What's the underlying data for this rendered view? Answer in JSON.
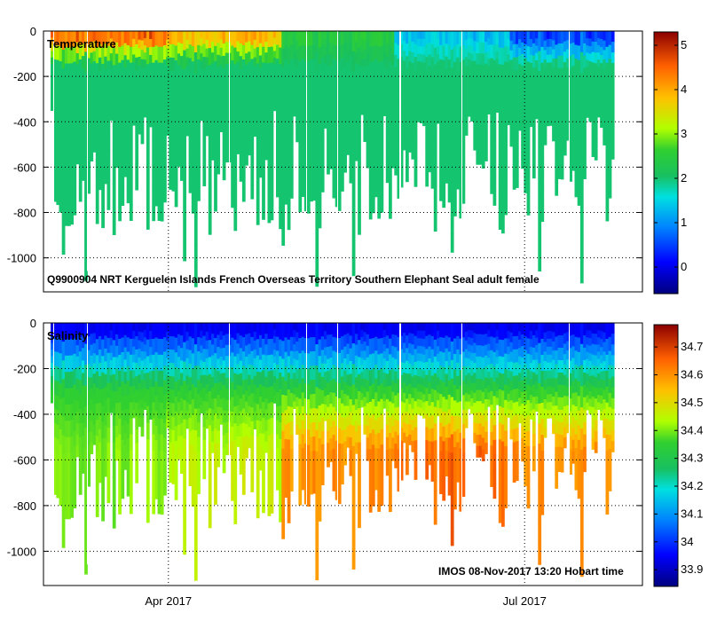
{
  "chart_data": [
    {
      "type": "heatmap",
      "panel_label": "Temperature",
      "title": "Q9900904 NRT Kerguelen Islands French Overseas Territory Southern Elephant Seal adult female",
      "xlabel": "",
      "ylabel": "",
      "x_ticks": [
        "Apr 2017",
        "Jul 2017"
      ],
      "y_ticks": [
        0,
        -200,
        -400,
        -600,
        -800,
        -1000
      ],
      "ylim": [
        -1150,
        0
      ],
      "colorbar": {
        "min": -0.6,
        "max": 5.3,
        "ticks": [
          0,
          1,
          2,
          3,
          4,
          5
        ]
      },
      "profiles": {
        "start": "2017-03-01",
        "end": "2017-07-31",
        "surface_value_by_month": {
          "Mar": 5.0,
          "Apr": 4.3,
          "May": 2.5,
          "Jun": 1.2,
          "Jul": 0.2
        },
        "deep_value": 2.0
      }
    },
    {
      "type": "heatmap",
      "panel_label": "Salinity",
      "title": "",
      "xlabel": "",
      "ylabel": "",
      "x_ticks": [
        "Apr 2017",
        "Jul 2017"
      ],
      "y_ticks": [
        0,
        -200,
        -400,
        -600,
        -800,
        -1000
      ],
      "ylim": [
        -1150,
        0
      ],
      "colorbar": {
        "min": 33.84,
        "max": 34.78,
        "ticks": [
          33.9,
          34,
          34.1,
          34.2,
          34.3,
          34.4,
          34.5,
          34.6,
          34.7
        ]
      },
      "profiles": {
        "surface_value": 33.9,
        "value_at_300m": 34.35,
        "deep_value_by_month": {
          "Mar": 34.4,
          "Apr": 34.45,
          "May": 34.6,
          "Jun": 34.65,
          "Jul": 34.6
        }
      }
    }
  ],
  "footer": "IMOS 08-Nov-2017 13:20 Hobart time"
}
